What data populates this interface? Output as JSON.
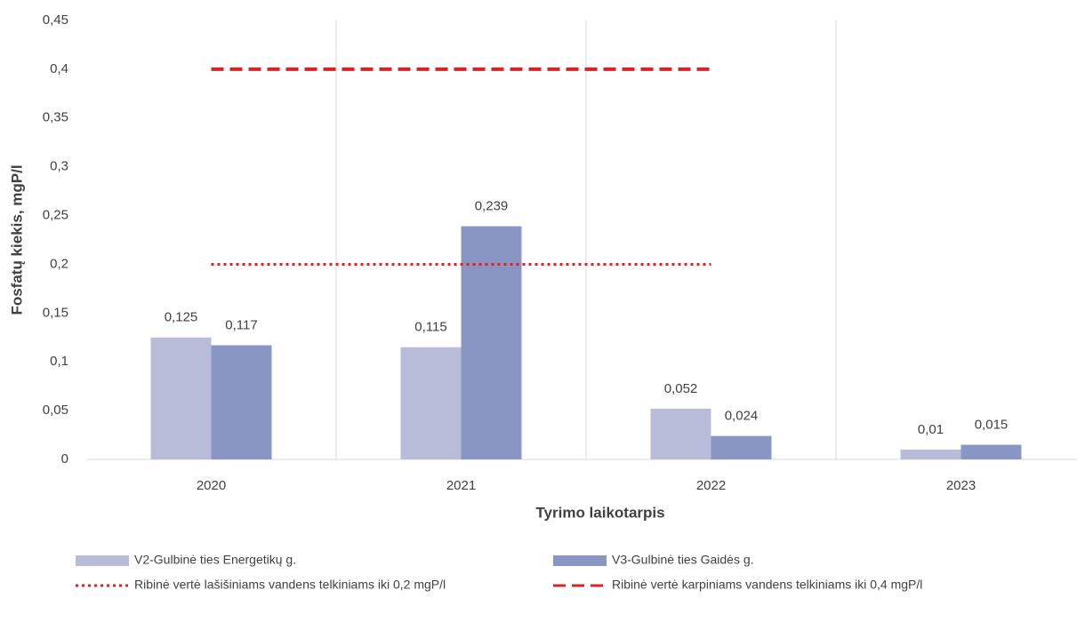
{
  "chart_data": {
    "type": "bar",
    "x_label": "Tyrimo laikotarpis",
    "y_label": "Fosfatų kiekis, mgP/l",
    "categories": [
      "2020",
      "2021",
      "2022",
      "2023"
    ],
    "series": [
      {
        "name": "V2-Gulbinė ties Energetikų g.",
        "color": "#b8bcd9",
        "type": "bar",
        "values": [
          0.125,
          0.115,
          0.052,
          0.01
        ],
        "value_labels": [
          "0,125",
          "0,115",
          "0,052",
          "0,01"
        ]
      },
      {
        "name": "V3-Gulbinė ties Gaidės g.",
        "color": "#8996c4",
        "type": "bar",
        "values": [
          0.117,
          0.239,
          0.024,
          0.015
        ],
        "value_labels": [
          "0,117",
          "0,239",
          "0,024",
          "0,015"
        ]
      },
      {
        "name": "Ribinė vertė lašišiniams vandens telkiniams iki 0,2 mgP/l",
        "color": "#e02020",
        "type": "line",
        "dash": "dotted",
        "values": [
          0.2,
          0.2,
          0.2,
          null
        ]
      },
      {
        "name": "Ribinė vertė karpiniams vandens telkiniams iki 0,4 mgP/l",
        "color": "#e02020",
        "type": "line",
        "dash": "dashed",
        "values": [
          0.4,
          0.4,
          0.4,
          null
        ]
      }
    ],
    "ylim": [
      0,
      0.45
    ],
    "yticks": [
      0,
      {
        "value": 0.05,
        "label": "0,05"
      },
      {
        "value": 0.1,
        "label": "0,1"
      },
      {
        "value": 0.15,
        "label": "0,15"
      },
      {
        "value": 0.2,
        "label": "0,2"
      },
      {
        "value": 0.25,
        "label": "0,25"
      },
      {
        "value": 0.3,
        "label": "0,3"
      },
      {
        "value": 0.35,
        "label": "0,35"
      },
      {
        "value": 0.4,
        "label": "0,4"
      },
      {
        "value": 0.45,
        "label": "0,45"
      }
    ],
    "legend": "bottom"
  }
}
